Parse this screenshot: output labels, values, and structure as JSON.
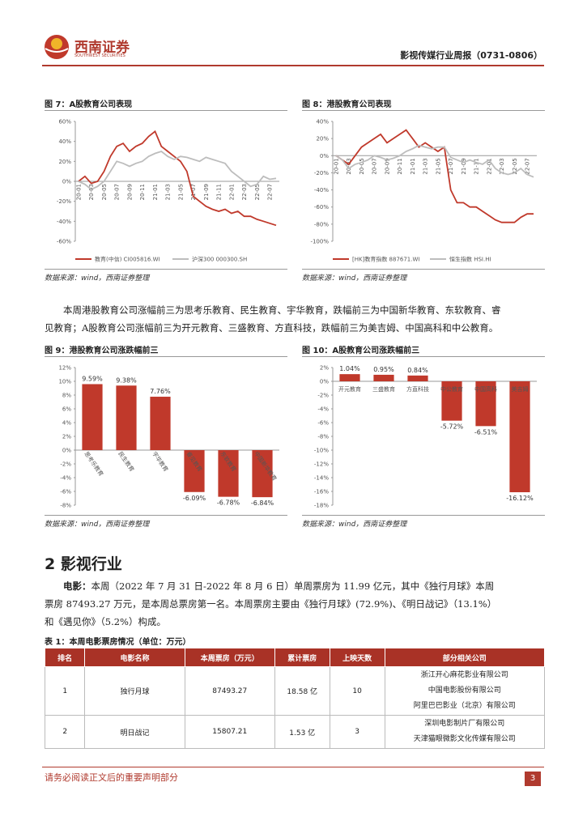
{
  "header": {
    "brand": "西南证券",
    "brand_en": "SOUTHWEST SECURITIES",
    "report_title": "影视传媒行业周报（0731-0806）"
  },
  "chart_data": [
    {
      "type": "line",
      "title": "图 7：A股教育公司表现",
      "source": "数据来源：wind，西南证券整理",
      "categories": [
        "20-01",
        null,
        "20-03",
        null,
        "20-05",
        null,
        "20-07",
        null,
        "20-09",
        null,
        "20-11",
        null,
        "21-01",
        null,
        "21-03",
        null,
        "21-05",
        null,
        "21-07",
        null,
        "21-09",
        null,
        "21-11",
        null,
        "22-01",
        null,
        "22-03",
        null,
        "22-05",
        null,
        "22-07",
        null
      ],
      "series": [
        {
          "name": "教育(中信) CI005816.WI",
          "color": "#c0392b",
          "values": [
            0,
            5,
            -2,
            0,
            10,
            25,
            35,
            38,
            30,
            35,
            38,
            45,
            50,
            35,
            30,
            25,
            20,
            10,
            -15,
            -20,
            -25,
            -28,
            -30,
            -28,
            -32,
            -30,
            -35,
            -35,
            -38,
            -40,
            -42,
            -44
          ]
        },
        {
          "name": "沪深300 000300.SH",
          "color": "#bdbdbd",
          "values": [
            0,
            -3,
            -8,
            -5,
            0,
            10,
            20,
            18,
            15,
            18,
            20,
            25,
            28,
            30,
            25,
            22,
            25,
            24,
            22,
            20,
            24,
            22,
            20,
            18,
            10,
            5,
            0,
            -5,
            -3,
            5,
            2,
            3
          ]
        }
      ],
      "ylim": [
        -60,
        60
      ],
      "yticks": [
        {
          "value": -60,
          "label": "-60%"
        },
        {
          "value": -40,
          "label": "-40%"
        },
        {
          "value": -20,
          "label": "-20%"
        },
        {
          "value": 0,
          "label": "0%"
        },
        {
          "value": 20,
          "label": "20%"
        },
        {
          "value": 40,
          "label": "40%"
        },
        {
          "value": 60,
          "label": "60%"
        }
      ]
    },
    {
      "type": "line",
      "title": "图 8：港股教育公司表现",
      "source": "数据来源：wind，西南证券整理",
      "categories": [
        "20-01",
        null,
        "20-03",
        null,
        "20-05",
        null,
        "20-07",
        null,
        "20-09",
        null,
        "20-11",
        null,
        "21-01",
        null,
        "21-03",
        null,
        "21-05",
        null,
        "21-07",
        null,
        "21-09",
        null,
        "21-11",
        null,
        "22-01",
        null,
        "22-03",
        null,
        "22-05",
        null,
        "22-07",
        null
      ],
      "series": [
        {
          "name": "[HK]教育指数 887671.WI",
          "color": "#c0392b",
          "values": [
            0,
            -5,
            -10,
            0,
            10,
            15,
            20,
            25,
            15,
            20,
            25,
            30,
            20,
            10,
            15,
            10,
            5,
            10,
            -40,
            -55,
            -55,
            -60,
            -60,
            -65,
            -70,
            -75,
            -78,
            -78,
            -78,
            -72,
            -68,
            -68
          ]
        },
        {
          "name": "恒生指数 HSI.HI",
          "color": "#bdbdbd",
          "values": [
            0,
            -5,
            -15,
            -10,
            -8,
            -5,
            0,
            -2,
            -5,
            -3,
            0,
            5,
            8,
            12,
            10,
            8,
            10,
            10,
            -2,
            -5,
            -8,
            -5,
            -8,
            -10,
            -5,
            -15,
            -20,
            -22,
            -20,
            -15,
            -22,
            -25
          ]
        }
      ],
      "ylim": [
        -100,
        40
      ],
      "yticks": [
        {
          "value": -100,
          "label": "-100%"
        },
        {
          "value": -80,
          "label": "-80%"
        },
        {
          "value": -60,
          "label": "-60%"
        },
        {
          "value": -40,
          "label": "-40%"
        },
        {
          "value": -20,
          "label": "-20%"
        },
        {
          "value": 0,
          "label": "0%"
        },
        {
          "value": 20,
          "label": "20%"
        },
        {
          "value": 40,
          "label": "40%"
        }
      ]
    },
    {
      "type": "bar",
      "title": "图 9：港股教育公司涨跌幅前三",
      "source": "数据来源：wind，西南证券整理",
      "color": "#c0392b",
      "categories": [
        "思考乐教育",
        "民生教育",
        "宇华教育",
        "睿见教育",
        "东软教育",
        "中国新华教育"
      ],
      "values": [
        9.59,
        9.38,
        7.76,
        -6.09,
        -6.78,
        -6.84
      ],
      "value_labels": [
        "9.59%",
        "9.38%",
        "7.76%",
        "-6.09%",
        "-6.78%",
        "-6.84%"
      ],
      "ylim": [
        -8,
        12
      ],
      "yticks": [
        {
          "value": -8,
          "label": "-8%"
        },
        {
          "value": -6,
          "label": "-6%"
        },
        {
          "value": -4,
          "label": "-4%"
        },
        {
          "value": -2,
          "label": "-2%"
        },
        {
          "value": 0,
          "label": "0%"
        },
        {
          "value": 2,
          "label": "2%"
        },
        {
          "value": 4,
          "label": "4%"
        },
        {
          "value": 6,
          "label": "6%"
        },
        {
          "value": 8,
          "label": "8%"
        },
        {
          "value": 10,
          "label": "10%"
        },
        {
          "value": 12,
          "label": "12%"
        }
      ]
    },
    {
      "type": "bar",
      "title": "图 10：A股教育公司涨跌幅前三",
      "source": "数据来源：wind，西南证券整理",
      "color": "#c0392b",
      "categories": [
        "开元教育",
        "三盛教育",
        "方直科技",
        "中公教育",
        "中国高科",
        "美吉姆"
      ],
      "values": [
        1.04,
        0.95,
        0.84,
        -5.72,
        -6.51,
        -16.12
      ],
      "value_labels": [
        "1.04%",
        "0.95%",
        "0.84%",
        "-5.72%",
        "-6.51%",
        "-16.12%"
      ],
      "ylim": [
        -18,
        2
      ],
      "yticks": [
        {
          "value": -18,
          "label": "-18%"
        },
        {
          "value": -16,
          "label": "-16%"
        },
        {
          "value": -14,
          "label": "-14%"
        },
        {
          "value": -12,
          "label": "-12%"
        },
        {
          "value": -10,
          "label": "-10%"
        },
        {
          "value": -8,
          "label": "-8%"
        },
        {
          "value": -6,
          "label": "-6%"
        },
        {
          "value": -4,
          "label": "-4%"
        },
        {
          "value": -2,
          "label": "-2%"
        },
        {
          "value": 0,
          "label": "0%"
        },
        {
          "value": 2,
          "label": "2%"
        }
      ]
    }
  ],
  "body": {
    "paragraph1": "本周港股教育公司涨幅前三为思考乐教育、民生教育、宇华教育，跌幅前三为中国新华教育、东软教育、睿见教育；A股教育公司涨幅前三为开元教育、三盛教育、方直科技，跌幅前三为美吉姆、中国高科和中公教育。",
    "section_title": "2 影视行业",
    "film_lead": "电影：",
    "film_text": "本周（2022 年 7 月 31 日-2022 年 8 月 6 日）单周票房为 11.99 亿元，其中《独行月球》本周票房 87493.27 万元，是本周总票房第一名。本周票房主要由《独行月球》(72.9%)、《明日战记》（13.1%）和《遇见你》（5.2%）构成。"
  },
  "table": {
    "caption": "表 1：本周电影票房情况（单位：万元）",
    "header": [
      "排名",
      "电影名称",
      "本周票房（万元）",
      "累计票房",
      "上映天数",
      "部分相关公司"
    ],
    "rows": [
      [
        "1",
        "独行月球",
        "87493.27",
        "18.58 亿",
        "10",
        [
          "浙江开心麻花影业有限公司",
          "中国电影股份有限公司",
          "阿里巴巴影业（北京）有限公司"
        ]
      ],
      [
        "2",
        "明日战记",
        "15807.21",
        "1.53 亿",
        "3",
        [
          "深圳电影制片厂有限公司",
          "天津猫眼微影文化传媒有限公司"
        ]
      ]
    ]
  },
  "footer": {
    "notice": "请务必阅读正文后的重要声明部分",
    "page": "3"
  }
}
